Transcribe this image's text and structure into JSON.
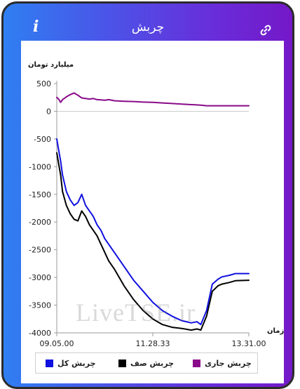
{
  "header": {
    "title": "چربش",
    "info_glyph": "i",
    "info_icon": "info-icon",
    "link_icon": "link-icon"
  },
  "colors": {
    "gradient_start": "#2f7ff2",
    "gradient_end": "#7418c8",
    "series_total": "#1010e0",
    "series_queue": "#000000",
    "series_current": "#8a0a8a"
  },
  "watermark": "LiveTSE.ir",
  "chart_data": {
    "type": "line",
    "ylabel": "میلیارد تومان",
    "xlabel": "زمان",
    "ylim": [
      -4000,
      500
    ],
    "yticks": [
      "500",
      "0",
      "-500",
      "-1000",
      "-1500",
      "-2000",
      "-2500",
      "-3000",
      "-3500",
      "-4000"
    ],
    "xticks": [
      "09.05.00",
      "11.28.33",
      "13.31.00"
    ],
    "x": [
      0,
      1,
      2,
      3,
      5,
      7,
      9,
      11,
      13,
      15,
      17,
      19,
      21,
      23,
      25,
      27,
      30,
      35,
      40,
      45,
      50,
      55,
      60,
      65,
      70,
      73,
      75,
      78,
      81,
      84,
      86,
      90,
      93,
      100
    ],
    "legend_position": "bottom",
    "series": [
      {
        "name": "چربش کل",
        "color": "#1010e0",
        "values": [
          -500,
          -700,
          -900,
          -1150,
          -1450,
          -1600,
          -1700,
          -1650,
          -1500,
          -1700,
          -1800,
          -1900,
          -2050,
          -2150,
          -2300,
          -2400,
          -2550,
          -2800,
          -3050,
          -3250,
          -3450,
          -3600,
          -3700,
          -3780,
          -3820,
          -3800,
          -3850,
          -3600,
          -3120,
          -3030,
          -2990,
          -2960,
          -2930,
          -2930
        ]
      },
      {
        "name": "چربش صف",
        "color": "#000000",
        "values": [
          -750,
          -950,
          -1150,
          -1450,
          -1700,
          -1850,
          -1950,
          -1980,
          -1800,
          -1900,
          -2050,
          -2150,
          -2250,
          -2400,
          -2550,
          -2700,
          -2850,
          -3150,
          -3400,
          -3600,
          -3750,
          -3850,
          -3900,
          -3920,
          -3950,
          -3930,
          -3950,
          -3700,
          -3250,
          -3150,
          -3120,
          -3090,
          -3060,
          -3050
        ]
      },
      {
        "name": "چربش جاری",
        "color": "#8a0a8a",
        "values": [
          250,
          220,
          160,
          210,
          260,
          300,
          330,
          290,
          240,
          230,
          220,
          230,
          210,
          205,
          200,
          210,
          190,
          180,
          175,
          165,
          160,
          150,
          140,
          130,
          120,
          115,
          110,
          100,
          100,
          100,
          100,
          100,
          100,
          100
        ]
      }
    ]
  }
}
